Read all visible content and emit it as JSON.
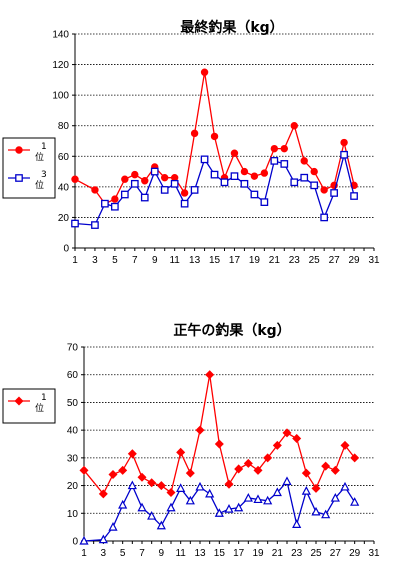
{
  "chart_data": [
    {
      "type": "line",
      "title": "最終釣果（kg）",
      "xlim": [
        1,
        31
      ],
      "ylim": [
        0,
        140
      ],
      "x_ticks": [
        1,
        3,
        5,
        7,
        9,
        11,
        13,
        15,
        17,
        19,
        21,
        23,
        25,
        27,
        29,
        31
      ],
      "y_ticks": [
        0,
        20,
        40,
        60,
        80,
        100,
        120,
        140
      ],
      "grid": "horizontal-dashed",
      "legend": "left",
      "series": [
        {
          "name": "1位",
          "color": "#ff0000",
          "marker": "filled-circle",
          "points": [
            [
              1,
              45
            ],
            [
              3,
              38
            ],
            [
              4,
              29
            ],
            [
              5,
              32
            ],
            [
              6,
              45
            ],
            [
              7,
              48
            ],
            [
              8,
              44
            ],
            [
              9,
              53
            ],
            [
              10,
              46
            ],
            [
              11,
              46
            ],
            [
              12,
              36
            ],
            [
              13,
              75
            ],
            [
              14,
              115
            ],
            [
              15,
              73
            ],
            [
              16,
              46
            ],
            [
              17,
              62
            ],
            [
              18,
              50
            ],
            [
              19,
              47
            ],
            [
              20,
              49
            ],
            [
              21,
              65
            ],
            [
              22,
              65
            ],
            [
              23,
              80
            ],
            [
              24,
              57
            ],
            [
              25,
              50
            ],
            [
              26,
              38
            ],
            [
              27,
              41
            ],
            [
              28,
              69
            ],
            [
              29,
              41
            ]
          ]
        },
        {
          "name": "3位",
          "color": "#0000cc",
          "marker": "open-square",
          "points": [
            [
              1,
              16
            ],
            [
              3,
              15
            ],
            [
              4,
              29
            ],
            [
              5,
              27
            ],
            [
              6,
              35
            ],
            [
              7,
              42
            ],
            [
              8,
              33
            ],
            [
              9,
              50
            ],
            [
              10,
              38
            ],
            [
              11,
              42
            ],
            [
              12,
              29
            ],
            [
              13,
              38
            ],
            [
              14,
              58
            ],
            [
              15,
              48
            ],
            [
              16,
              43
            ],
            [
              17,
              47
            ],
            [
              18,
              42
            ],
            [
              19,
              35
            ],
            [
              20,
              30
            ],
            [
              21,
              57
            ],
            [
              22,
              55
            ],
            [
              23,
              43
            ],
            [
              24,
              46
            ],
            [
              25,
              41
            ],
            [
              26,
              20
            ],
            [
              27,
              36
            ],
            [
              28,
              61
            ],
            [
              29,
              34
            ]
          ]
        }
      ]
    },
    {
      "type": "line",
      "title": "正午の釣果（kg）",
      "xlim": [
        1,
        31
      ],
      "ylim": [
        0,
        70
      ],
      "x_ticks": [
        1,
        3,
        5,
        7,
        9,
        11,
        13,
        15,
        17,
        19,
        21,
        23,
        25,
        27,
        29,
        31
      ],
      "y_ticks": [
        0,
        10,
        20,
        30,
        40,
        50,
        60,
        70
      ],
      "grid": "horizontal-dashed",
      "legend": "left",
      "series": [
        {
          "name": "1位",
          "color": "#ff0000",
          "marker": "filled-diamond",
          "points": [
            [
              1,
              25.5
            ],
            [
              3,
              17
            ],
            [
              4,
              24
            ],
            [
              5,
              25.5
            ],
            [
              6,
              31.5
            ],
            [
              7,
              23
            ],
            [
              8,
              21
            ],
            [
              9,
              20
            ],
            [
              10,
              17.5
            ],
            [
              11,
              32
            ],
            [
              12,
              24.5
            ],
            [
              13,
              40
            ],
            [
              14,
              60
            ],
            [
              15,
              35
            ],
            [
              16,
              20.5
            ],
            [
              17,
              26
            ],
            [
              18,
              28
            ],
            [
              19,
              25.5
            ],
            [
              20,
              30
            ],
            [
              21,
              34.5
            ],
            [
              22,
              39
            ],
            [
              23,
              37
            ],
            [
              24,
              24.5
            ],
            [
              25,
              19
            ],
            [
              26,
              27
            ],
            [
              27,
              25.5
            ],
            [
              28,
              34.5
            ],
            [
              29,
              30
            ]
          ]
        },
        {
          "name": "",
          "color": "#0000cc",
          "marker": "open-triangle",
          "points": [
            [
              1,
              0
            ],
            [
              3,
              0.5
            ],
            [
              4,
              5
            ],
            [
              5,
              13
            ],
            [
              6,
              20
            ],
            [
              7,
              12
            ],
            [
              8,
              9
            ],
            [
              9,
              5.5
            ],
            [
              10,
              12
            ],
            [
              11,
              19
            ],
            [
              12,
              14.5
            ],
            [
              13,
              19.5
            ],
            [
              14,
              17
            ],
            [
              15,
              10
            ],
            [
              16,
              11.5
            ],
            [
              17,
              12
            ],
            [
              18,
              15.5
            ],
            [
              19,
              15
            ],
            [
              20,
              14.5
            ],
            [
              21,
              17.5
            ],
            [
              22,
              21.5
            ],
            [
              23,
              6
            ],
            [
              24,
              18
            ],
            [
              25,
              10.5
            ],
            [
              26,
              9.5
            ],
            [
              27,
              15.5
            ],
            [
              28,
              19.5
            ],
            [
              29,
              14
            ]
          ]
        }
      ]
    }
  ]
}
